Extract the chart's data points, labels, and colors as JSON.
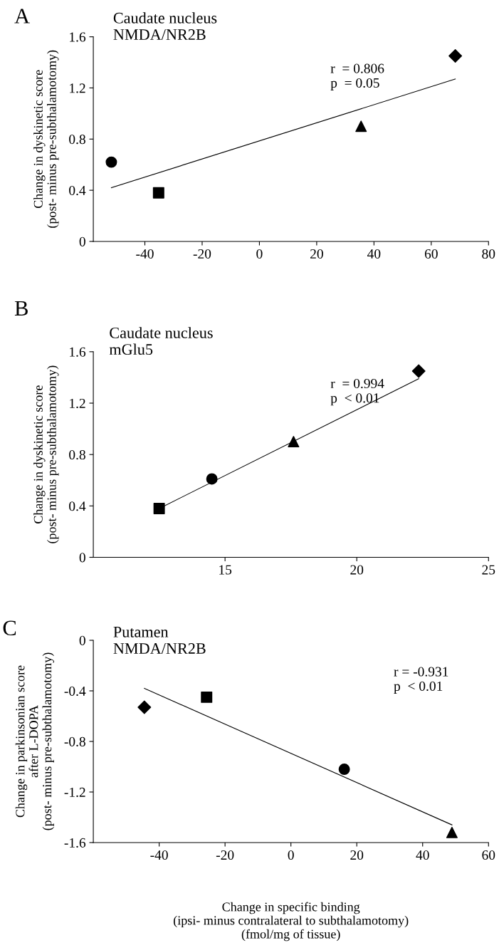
{
  "chart_data": [
    {
      "type": "scatter",
      "ylabel": "Change in dyskinetic score\n(post- minus pre-subthalamotomy)",
      "xlim": [
        -58,
        80
      ],
      "xticks": [
        -40,
        -20,
        0,
        20,
        40,
        60,
        80
      ],
      "ylim": [
        0,
        1.6
      ],
      "yticks": [
        0,
        0.4,
        0.8,
        1.2,
        1.6
      ],
      "grid": false,
      "legend": false,
      "annotations": [
        "A",
        "Caudate nucleus\nNMDA/NR2B",
        "r  = 0.806\np  = 0.05"
      ],
      "series": [
        {
          "marker": "circle",
          "color": "#000000",
          "x": [
            -51.7
          ],
          "values": [
            0.62
          ]
        },
        {
          "marker": "square",
          "color": "#000000",
          "x": [
            -35.2
          ],
          "values": [
            0.38
          ]
        },
        {
          "marker": "triangle",
          "color": "#000000",
          "x": [
            35.5
          ],
          "values": [
            0.9
          ]
        },
        {
          "marker": "diamond",
          "color": "#000000",
          "x": [
            68.4
          ],
          "values": [
            1.45
          ]
        },
        {
          "type": "line",
          "marker": "none",
          "color": "#000000",
          "x": [
            -51.7,
            68.4
          ],
          "values": [
            0.42,
            1.27
          ]
        }
      ]
    },
    {
      "type": "scatter",
      "ylabel": "Change in dyskinetic score\n(post- minus pre-subthalamotomy)",
      "xlim": [
        10,
        25
      ],
      "xticks": [
        15,
        20,
        25
      ],
      "ylim": [
        0,
        1.6
      ],
      "yticks": [
        0,
        0.4,
        0.8,
        1.2,
        1.6
      ],
      "grid": false,
      "legend": false,
      "annotations": [
        "B",
        "Caudate nucleus\nmGlu5",
        "r  = 0.994\np  < 0.01"
      ],
      "series": [
        {
          "marker": "square",
          "color": "#000000",
          "x": [
            12.5
          ],
          "values": [
            0.38
          ]
        },
        {
          "marker": "circle",
          "color": "#000000",
          "x": [
            14.5
          ],
          "values": [
            0.61
          ]
        },
        {
          "marker": "triangle",
          "color": "#000000",
          "x": [
            17.6
          ],
          "values": [
            0.9
          ]
        },
        {
          "marker": "diamond",
          "color": "#000000",
          "x": [
            22.35
          ],
          "values": [
            1.45
          ]
        },
        {
          "type": "line",
          "marker": "none",
          "color": "#000000",
          "x": [
            12.5,
            22.35
          ],
          "values": [
            0.38,
            1.39
          ]
        }
      ]
    },
    {
      "type": "scatter",
      "ylabel": "Change in parkinsonian score\nafter L-DOPA\n(post- minus pre-subthalamotomy)",
      "xlabel": "Change in specific binding\n(ipsi- minus contralateral to subthalamotomy)\n(fmol/mg of tissue)",
      "xlim": [
        -60,
        60
      ],
      "xticks": [
        -40,
        -20,
        0,
        20,
        40,
        60
      ],
      "ylim": [
        -1.6,
        0
      ],
      "yticks": [
        -1.6,
        -1.2,
        -0.8,
        -0.4,
        0
      ],
      "grid": false,
      "legend": false,
      "annotations": [
        "C",
        "Putamen\nNMDA/NR2B",
        "r = -0.931\np  < 0.01"
      ],
      "series": [
        {
          "marker": "diamond",
          "color": "#000000",
          "x": [
            -44.5
          ],
          "values": [
            -0.53
          ]
        },
        {
          "marker": "square",
          "color": "#000000",
          "x": [
            -25.6
          ],
          "values": [
            -0.45
          ]
        },
        {
          "marker": "circle",
          "color": "#000000",
          "x": [
            16.2
          ],
          "values": [
            -1.02
          ]
        },
        {
          "marker": "triangle",
          "color": "#000000",
          "x": [
            48.9
          ],
          "values": [
            -1.52
          ]
        },
        {
          "type": "line",
          "marker": "none",
          "color": "#000000",
          "x": [
            -44.5,
            48.9
          ],
          "values": [
            -0.38,
            -1.46
          ]
        }
      ]
    }
  ]
}
